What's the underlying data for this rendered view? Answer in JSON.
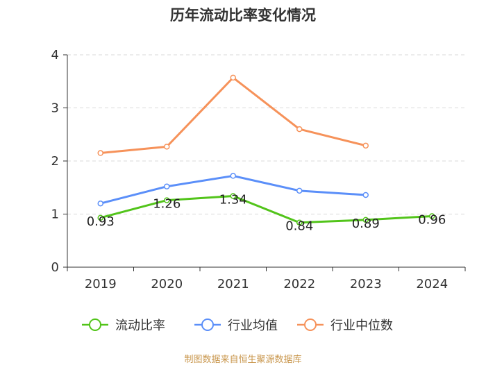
{
  "chart_data": {
    "type": "line",
    "title": "历年流动比率变化情况",
    "categories": [
      "2019",
      "2020",
      "2021",
      "2022",
      "2023",
      "2024"
    ],
    "ylim": [
      0,
      4
    ],
    "yticks": [
      0,
      1,
      2,
      3,
      4
    ],
    "grid": true,
    "legend_position": "bottom",
    "series": [
      {
        "name": "流动比率",
        "color": "#52c41a",
        "values": [
          0.93,
          1.26,
          1.34,
          0.84,
          0.89,
          0.96
        ],
        "labels": [
          "0.93",
          "1.26",
          "1.34",
          "0.84",
          "0.89",
          "0.96"
        ]
      },
      {
        "name": "行业均值",
        "color": "#5b8ff9",
        "values": [
          1.2,
          1.52,
          1.72,
          1.44,
          1.36,
          null
        ]
      },
      {
        "name": "行业中位数",
        "color": "#f6925a",
        "values": [
          2.15,
          2.27,
          3.57,
          2.6,
          2.29,
          null
        ]
      }
    ]
  },
  "source_note": {
    "text": "制图数据来自恒生聚源数据库",
    "color": "#c8954a"
  }
}
